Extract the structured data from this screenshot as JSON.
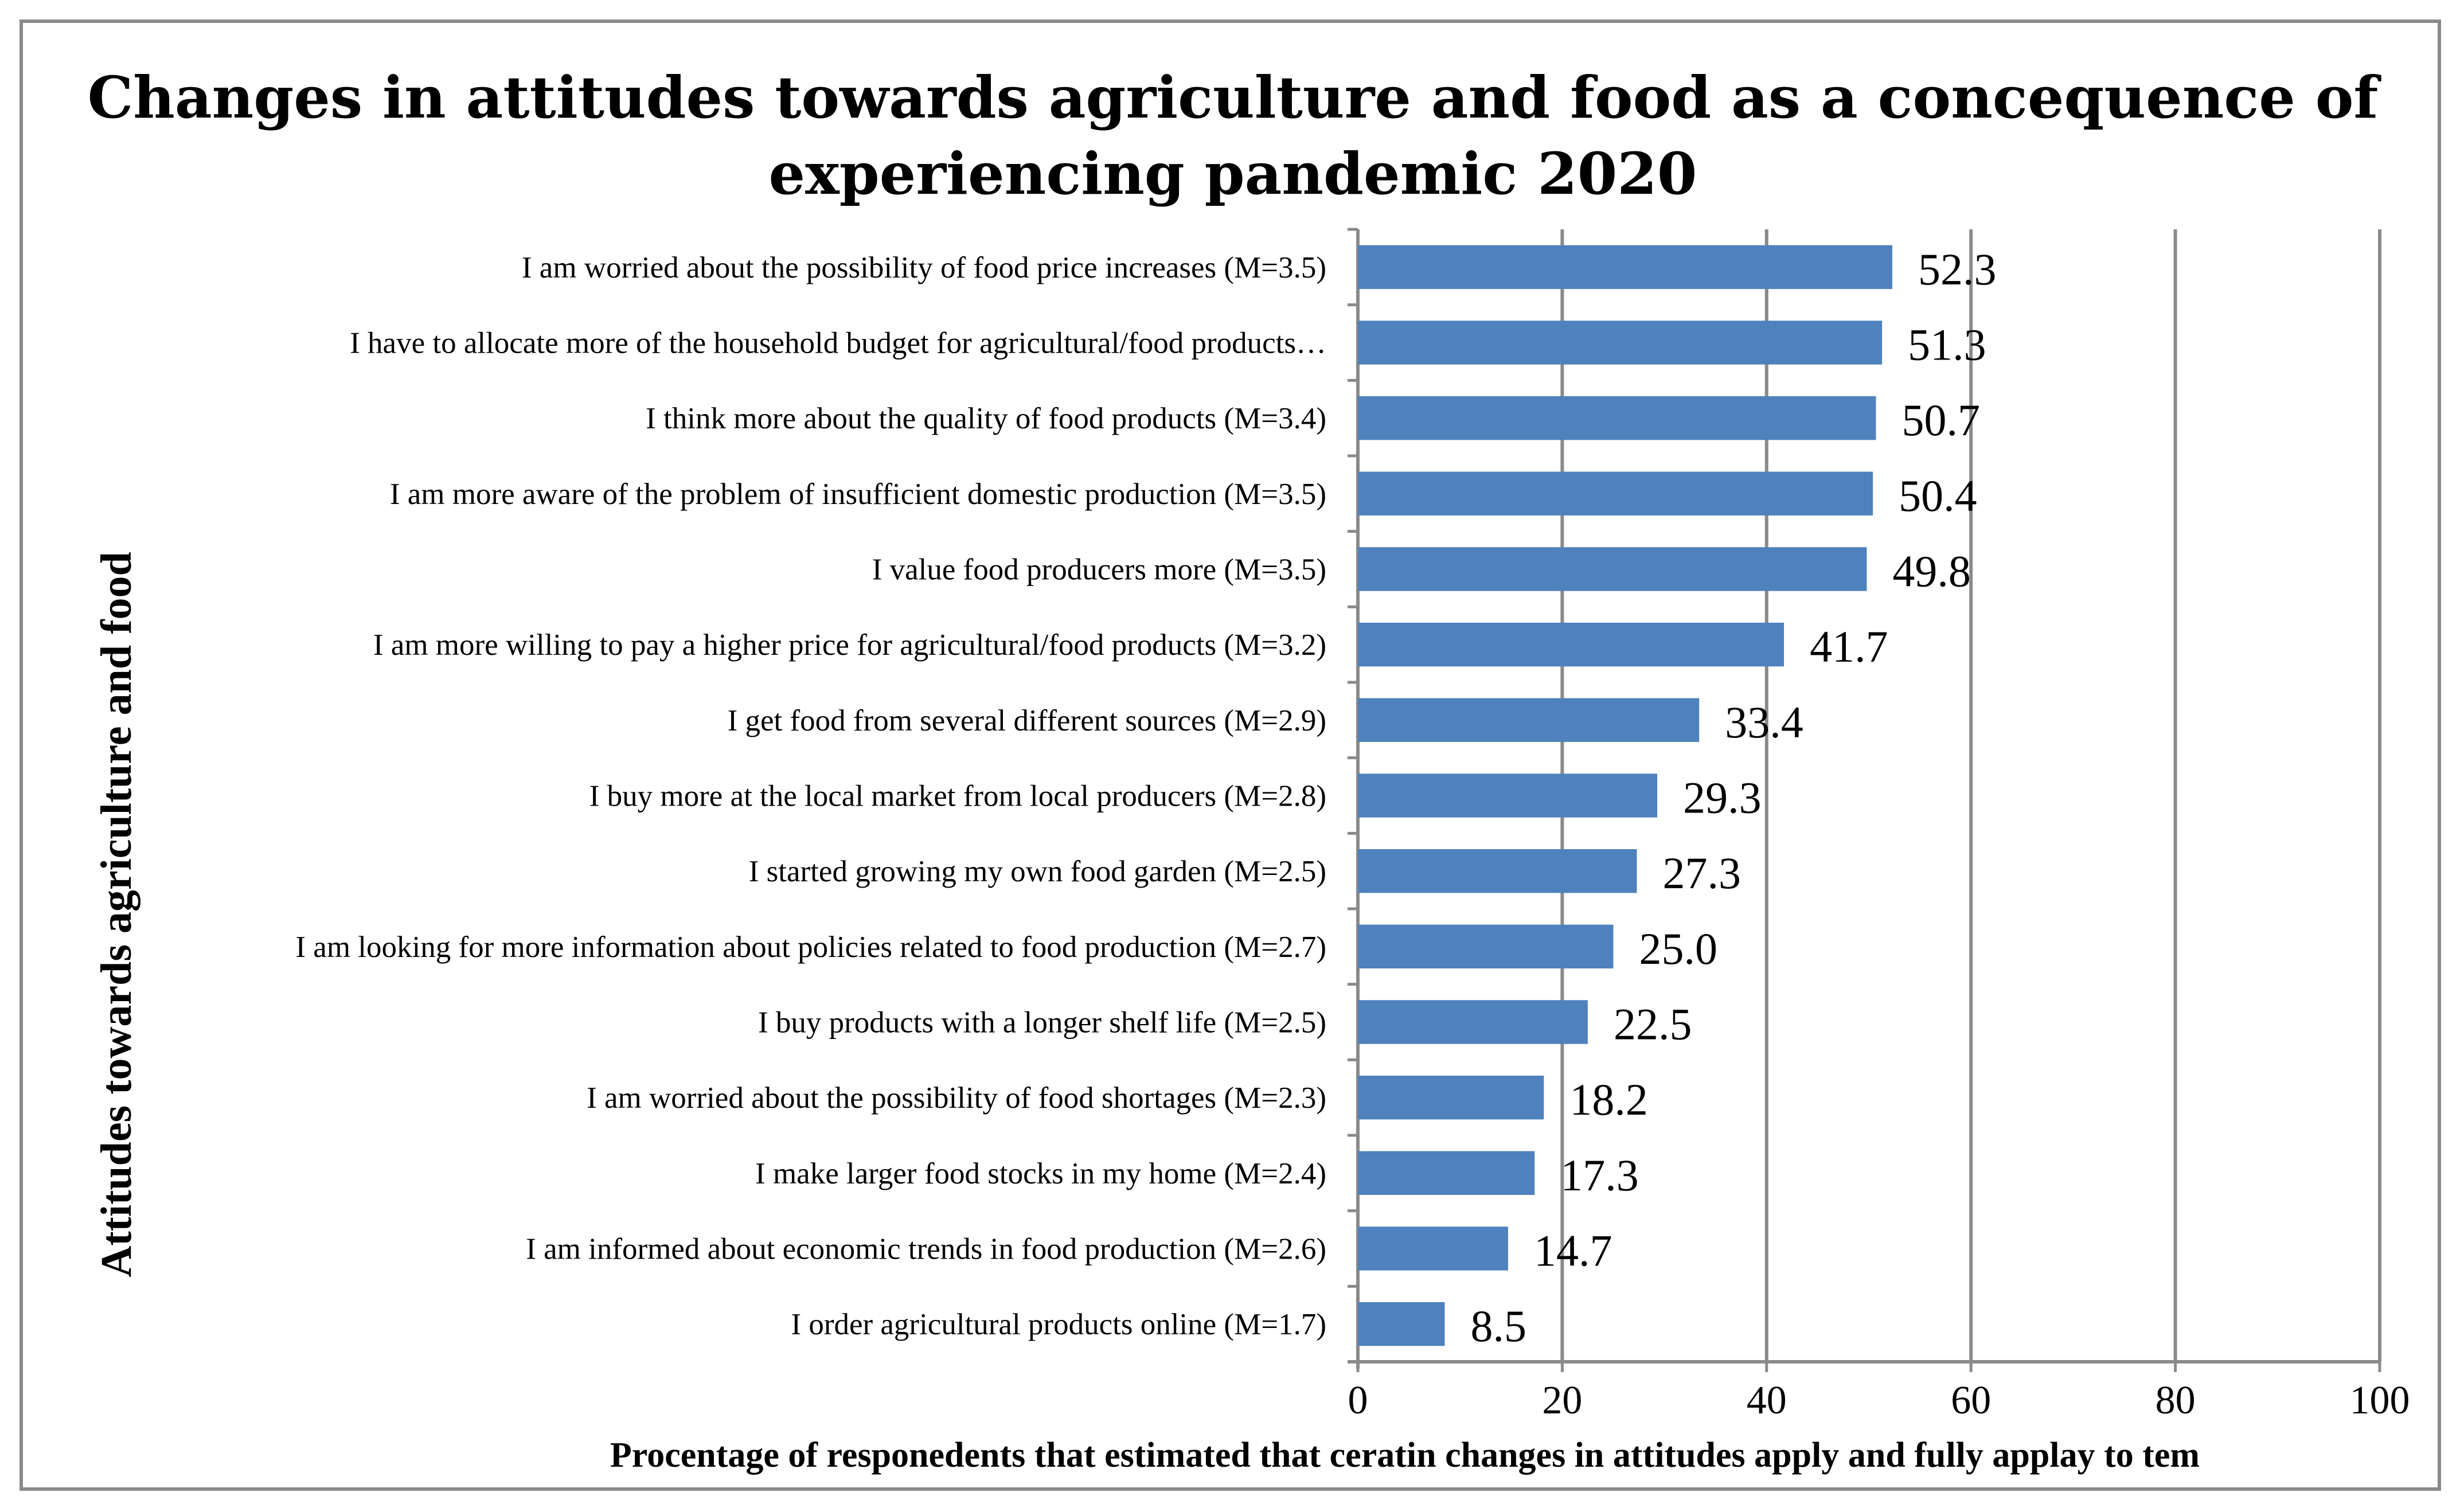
{
  "chart_data": {
    "type": "bar",
    "orientation": "horizontal",
    "title_lines": [
      "Changes in attitudes towards agriculture and food as a concequence of",
      "experiencing pandemic 2020"
    ],
    "xlabel": "Procentage of responedents that estimated that ceratin changes in attitudes apply and fully applay to tem",
    "ylabel": "Attitudes towards agriculture and food",
    "xlim": [
      0,
      100
    ],
    "xticks": [
      "0",
      "20",
      "40",
      "60",
      "80",
      "100"
    ],
    "grid": true,
    "categories": [
      "I am worried about the possibility of food price increases (M=3.5)",
      "I have to allocate more of the household budget for agricultural/food products…",
      "I think more about the quality of food products (M=3.4)",
      "I am more aware of the problem of insufficient domestic production (M=3.5)",
      "I value food producers more (M=3.5)",
      "I am more willing to pay a higher price for agricultural/food products (M=3.2)",
      "I get food from several different sources (M=2.9)",
      "I buy more at the local market from local producers (M=2.8)",
      "I started growing my own food garden (M=2.5)",
      "I am looking for more information about policies related to food production (M=2.7)",
      "I buy products with a longer shelf life (M=2.5)",
      "I am worried about the possibility of food shortages (M=2.3)",
      "I make larger food stocks in my home (M=2.4)",
      "I am informed about economic trends in food production (M=2.6)",
      "I order agricultural products online (M=1.7)"
    ],
    "values": [
      52.3,
      51.3,
      50.7,
      50.4,
      49.8,
      41.7,
      33.4,
      29.3,
      27.3,
      25.0,
      22.5,
      18.2,
      17.3,
      14.7,
      8.5
    ],
    "value_labels": [
      "52.3",
      "51.3",
      "50.7",
      "50.4",
      "49.8",
      "41.7",
      "33.4",
      "29.3",
      "27.3",
      "25.0",
      "22.5",
      "18.2",
      "17.3",
      "14.7",
      "8.5"
    ],
    "bar_color": "#4f81bd",
    "grid_color": "#8a8a8a"
  }
}
